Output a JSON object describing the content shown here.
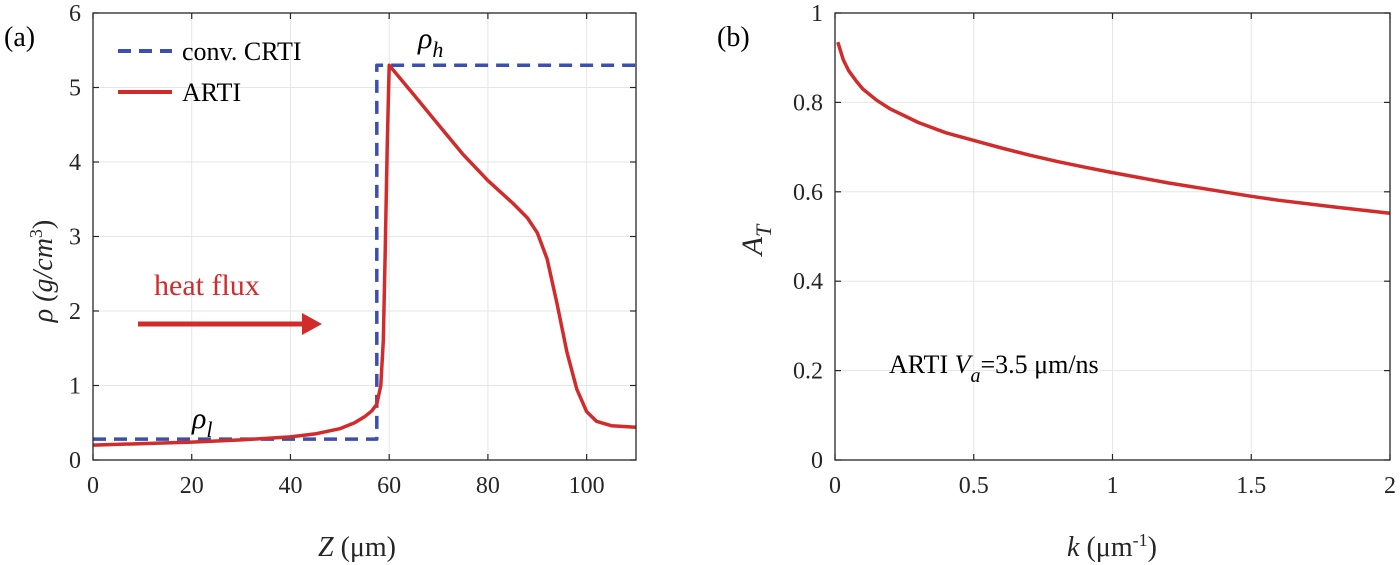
{
  "colors": {
    "red": "#d22b2b",
    "blue": "#3b4fb0",
    "grid": "#e6e6e6",
    "axis": "#262626"
  },
  "chart_data": [
    {
      "panel_label": "(a)",
      "type": "line",
      "xlabel": {
        "sym": "Z",
        "rest": " (μm)"
      },
      "ylabel": {
        "main": "ρ (g/cm",
        "sup": "3",
        "close": ")"
      },
      "xlim": [
        0,
        110
      ],
      "ylim": [
        0,
        6
      ],
      "xticks": [
        0,
        20,
        40,
        60,
        80,
        100
      ],
      "yticks": [
        0,
        1,
        2,
        3,
        4,
        5,
        6
      ],
      "grid": true,
      "legend_position": "top-left",
      "annotations": {
        "rho_h": {
          "sym": "ρ",
          "sub": "h"
        },
        "rho_l": {
          "sym": "ρ",
          "sub": "l"
        },
        "heat_flux": "heat flux"
      },
      "series": [
        {
          "name": "conv. CRTI",
          "style": "dashed",
          "color": "#3b4fb0",
          "points": [
            [
              0,
              0.28
            ],
            [
              57.5,
              0.28
            ],
            [
              57.5,
              5.3
            ],
            [
              110,
              5.3
            ]
          ]
        },
        {
          "name": "ARTI",
          "style": "solid",
          "color": "#d22b2b",
          "points": [
            [
              0,
              0.2
            ],
            [
              10,
              0.22
            ],
            [
              20,
              0.24
            ],
            [
              30,
              0.27
            ],
            [
              40,
              0.31
            ],
            [
              45,
              0.35
            ],
            [
              50,
              0.42
            ],
            [
              53,
              0.5
            ],
            [
              55,
              0.58
            ],
            [
              56.5,
              0.66
            ],
            [
              57.5,
              0.75
            ],
            [
              58.3,
              1.0
            ],
            [
              58.8,
              1.6
            ],
            [
              59.2,
              2.8
            ],
            [
              59.6,
              4.2
            ],
            [
              60,
              5.3
            ],
            [
              65,
              4.9
            ],
            [
              70,
              4.5
            ],
            [
              75,
              4.1
            ],
            [
              80,
              3.75
            ],
            [
              85,
              3.45
            ],
            [
              88,
              3.25
            ],
            [
              90,
              3.05
            ],
            [
              92,
              2.7
            ],
            [
              94,
              2.1
            ],
            [
              96,
              1.45
            ],
            [
              98,
              0.95
            ],
            [
              100,
              0.65
            ],
            [
              102,
              0.52
            ],
            [
              105,
              0.46
            ],
            [
              110,
              0.44
            ]
          ]
        }
      ]
    },
    {
      "panel_label": "(b)",
      "type": "line",
      "xlabel": {
        "sym": "k",
        "rest": " (μm",
        "sup": "-1",
        "close": ")"
      },
      "ylabel": {
        "sym": "A",
        "sub": "T"
      },
      "xlim": [
        0,
        2
      ],
      "ylim": [
        0,
        1
      ],
      "xticks": [
        0,
        0.5,
        1,
        1.5,
        2
      ],
      "yticks": [
        0,
        0.2,
        0.4,
        0.6,
        0.8,
        1
      ],
      "grid": true,
      "annotation": {
        "pre": "ARTI ",
        "sym": "V",
        "sub": "a",
        "post": "=3.5 μm/ns"
      },
      "series": [
        {
          "style": "solid",
          "color": "#d22b2b",
          "points": [
            [
              0.01,
              0.935
            ],
            [
              0.03,
              0.895
            ],
            [
              0.05,
              0.87
            ],
            [
              0.08,
              0.845
            ],
            [
              0.1,
              0.83
            ],
            [
              0.15,
              0.805
            ],
            [
              0.2,
              0.785
            ],
            [
              0.3,
              0.755
            ],
            [
              0.4,
              0.732
            ],
            [
              0.5,
              0.715
            ],
            [
              0.6,
              0.698
            ],
            [
              0.7,
              0.682
            ],
            [
              0.8,
              0.668
            ],
            [
              0.9,
              0.655
            ],
            [
              1.0,
              0.643
            ],
            [
              1.2,
              0.62
            ],
            [
              1.4,
              0.6
            ],
            [
              1.5,
              0.59
            ],
            [
              1.6,
              0.581
            ],
            [
              1.8,
              0.566
            ],
            [
              2.0,
              0.552
            ]
          ]
        }
      ]
    }
  ]
}
